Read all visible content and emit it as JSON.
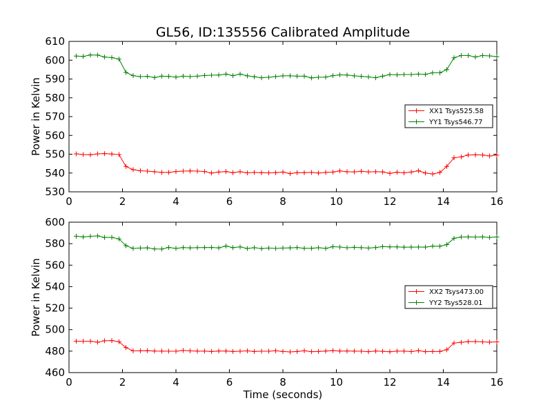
{
  "figure_title": "GL56, ID:135556 Calibrated Amplitude",
  "chart_data": [
    {
      "type": "line",
      "title": "GL56, ID:135556 Calibrated Amplitude",
      "xlabel": "",
      "ylabel": "Power in Kelvin",
      "xlim": [
        0,
        16
      ],
      "ylim": [
        530,
        610
      ],
      "xticks": [
        0,
        2,
        4,
        6,
        8,
        10,
        12,
        14,
        16
      ],
      "yticks": [
        530,
        540,
        550,
        560,
        570,
        580,
        590,
        600,
        610
      ],
      "grid": false,
      "legend": "center-right",
      "x": [
        0.27,
        0.53,
        0.8,
        1.07,
        1.33,
        1.6,
        1.87,
        2.13,
        2.4,
        2.67,
        2.93,
        3.2,
        3.47,
        3.73,
        4.0,
        4.27,
        4.53,
        4.8,
        5.07,
        5.33,
        5.6,
        5.87,
        6.13,
        6.4,
        6.67,
        6.93,
        7.2,
        7.47,
        7.73,
        8.0,
        8.27,
        8.53,
        8.8,
        9.07,
        9.33,
        9.6,
        9.87,
        10.13,
        10.4,
        10.67,
        10.93,
        11.2,
        11.47,
        11.73,
        12.0,
        12.27,
        12.53,
        12.8,
        13.07,
        13.33,
        13.6,
        13.87,
        14.13,
        14.4,
        14.67,
        14.93,
        15.2,
        15.47,
        15.73,
        16.0
      ],
      "series": [
        {
          "name": "XX1 Tsys525.58",
          "color": "#ff0000",
          "values": [
            550.2,
            549.8,
            549.7,
            550.2,
            550.3,
            550.1,
            549.8,
            543.5,
            541.8,
            541.2,
            541.0,
            540.7,
            540.3,
            540.3,
            540.8,
            541.0,
            541.1,
            541.0,
            540.8,
            540.0,
            540.5,
            540.8,
            540.2,
            540.7,
            540.1,
            540.3,
            540.2,
            540.1,
            540.2,
            540.5,
            539.7,
            540.2,
            540.2,
            540.3,
            540.0,
            540.3,
            540.5,
            541.1,
            540.7,
            540.6,
            540.9,
            540.6,
            540.7,
            540.6,
            539.8,
            540.4,
            540.1,
            540.5,
            541.2,
            540.0,
            539.5,
            540.3,
            543.5,
            548.1,
            548.6,
            549.6,
            549.7,
            549.6,
            549.1,
            549.5
          ]
        },
        {
          "name": "YY1 Tsys546.77",
          "color": "#008000",
          "values": [
            602.2,
            602.0,
            602.8,
            602.7,
            601.7,
            601.4,
            600.6,
            593.5,
            591.8,
            591.3,
            591.4,
            590.8,
            591.5,
            591.4,
            591.0,
            591.5,
            591.3,
            591.5,
            591.9,
            592.0,
            592.1,
            592.6,
            591.8,
            592.6,
            591.7,
            591.2,
            590.7,
            590.9,
            591.3,
            591.7,
            591.7,
            591.5,
            591.5,
            590.6,
            590.9,
            591.0,
            591.8,
            592.2,
            592.1,
            591.7,
            591.4,
            591.1,
            590.7,
            591.5,
            592.4,
            592.2,
            592.4,
            592.4,
            592.6,
            592.5,
            593.3,
            593.3,
            595.0,
            601.3,
            602.5,
            602.5,
            601.7,
            602.5,
            602.3,
            601.9
          ]
        }
      ]
    },
    {
      "type": "line",
      "title": "",
      "xlabel": "Time (seconds)",
      "ylabel": "Power in Kelvin",
      "xlim": [
        0,
        16
      ],
      "ylim": [
        460,
        600
      ],
      "xticks": [
        0,
        2,
        4,
        6,
        8,
        10,
        12,
        14,
        16
      ],
      "yticks": [
        460,
        480,
        500,
        520,
        540,
        560,
        580,
        600
      ],
      "grid": false,
      "legend": "center-right",
      "x": [
        0.27,
        0.53,
        0.8,
        1.07,
        1.33,
        1.6,
        1.87,
        2.13,
        2.4,
        2.67,
        2.93,
        3.2,
        3.47,
        3.73,
        4.0,
        4.27,
        4.53,
        4.8,
        5.07,
        5.33,
        5.6,
        5.87,
        6.13,
        6.4,
        6.67,
        6.93,
        7.2,
        7.47,
        7.73,
        8.0,
        8.27,
        8.53,
        8.8,
        9.07,
        9.33,
        9.6,
        9.87,
        10.13,
        10.4,
        10.67,
        10.93,
        11.2,
        11.47,
        11.73,
        12.0,
        12.27,
        12.53,
        12.8,
        13.07,
        13.33,
        13.6,
        13.87,
        14.13,
        14.4,
        14.67,
        14.93,
        15.2,
        15.47,
        15.73,
        16.0
      ],
      "series": [
        {
          "name": "XX2 Tsys473.00",
          "color": "#ff0000",
          "values": [
            489.2,
            489.2,
            489.2,
            488.3,
            489.6,
            489.8,
            488.7,
            483.3,
            480.2,
            480.3,
            480.4,
            480.1,
            480.0,
            479.9,
            479.9,
            480.6,
            480.2,
            480.0,
            480.0,
            479.7,
            480.1,
            480.1,
            479.7,
            479.9,
            480.2,
            479.7,
            479.9,
            479.9,
            480.3,
            479.7,
            479.3,
            479.7,
            480.3,
            479.5,
            479.7,
            480.1,
            480.5,
            480.1,
            480.1,
            480.0,
            479.9,
            479.5,
            480.1,
            479.8,
            479.4,
            480.0,
            480.0,
            479.6,
            480.4,
            479.5,
            479.7,
            479.7,
            481.3,
            487.5,
            488.2,
            488.8,
            488.9,
            488.6,
            488.3,
            488.6
          ]
        },
        {
          "name": "YY2 Tsys528.01",
          "color": "#008000",
          "values": [
            586.9,
            586.3,
            586.8,
            587.2,
            585.8,
            585.9,
            584.4,
            578.1,
            575.6,
            575.9,
            576.1,
            575.1,
            575.0,
            576.5,
            575.6,
            576.4,
            576.1,
            576.3,
            576.4,
            576.5,
            576.1,
            577.8,
            576.3,
            577.0,
            575.5,
            576.2,
            575.4,
            575.9,
            575.6,
            575.9,
            576.1,
            576.4,
            575.7,
            575.7,
            576.2,
            575.6,
            577.2,
            576.9,
            576.2,
            576.6,
            576.3,
            575.9,
            576.4,
            577.3,
            577.0,
            577.0,
            576.7,
            576.8,
            576.9,
            576.8,
            577.7,
            577.6,
            579.1,
            585.0,
            586.2,
            586.3,
            586.2,
            586.3,
            585.8,
            586.3
          ]
        }
      ]
    }
  ]
}
